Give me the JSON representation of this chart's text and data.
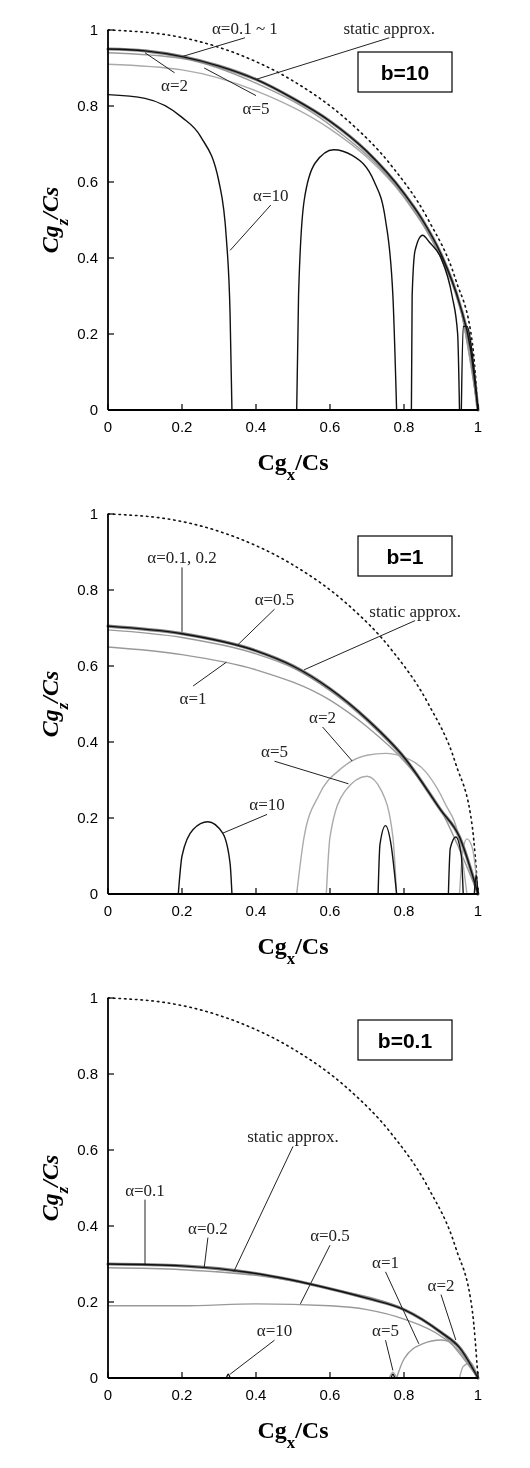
{
  "chart_data": [
    {
      "type": "line",
      "title": "b=10",
      "xlabel": "Cg$_{x}$/Cs",
      "ylabel": "Cg$_{z}$/Cs",
      "xlim": [
        0,
        1
      ],
      "ylim": [
        0,
        1
      ],
      "xticks": [
        0,
        0.2,
        0.4,
        0.6,
        0.8,
        1
      ],
      "yticks": [
        0,
        0.2,
        0.4,
        0.6,
        0.8,
        1
      ],
      "series": [
        {
          "color": "#111111",
          "line_style": "dotted",
          "x": [
            0,
            0.174,
            0.342,
            0.5,
            0.643,
            0.766,
            0.866,
            0.94,
            0.985,
            1
          ],
          "values": [
            1,
            0.985,
            0.94,
            0.866,
            0.766,
            0.643,
            0.5,
            0.342,
            0.174,
            0
          ]
        },
        {
          "color": "#aaaaaa",
          "x": [
            0,
            0.2,
            0.4,
            0.6,
            0.7,
            0.8,
            0.9,
            0.95,
            1
          ],
          "values": [
            0.91,
            0.895,
            0.84,
            0.74,
            0.665,
            0.56,
            0.4,
            0.28,
            0
          ]
        },
        {
          "color": "#999999",
          "x": [
            0,
            0.2,
            0.4,
            0.6,
            0.8,
            0.9,
            0.95,
            1
          ],
          "values": [
            0.94,
            0.925,
            0.86,
            0.75,
            0.56,
            0.4,
            0.28,
            0
          ]
        },
        {
          "color": "#808080",
          "x": [
            0,
            0.1,
            0.2,
            0.3,
            0.4,
            0.5,
            0.6,
            0.7,
            0.8,
            0.85,
            0.9,
            0.95,
            0.98,
            1
          ],
          "values": [
            0.95,
            0.945,
            0.93,
            0.905,
            0.87,
            0.82,
            0.76,
            0.68,
            0.57,
            0.5,
            0.41,
            0.28,
            0.16,
            0
          ]
        },
        {
          "color": "#111111",
          "x": [
            0,
            0.1,
            0.2,
            0.3,
            0.4,
            0.5,
            0.6,
            0.7,
            0.8,
            0.85,
            0.9,
            0.95,
            0.98,
            1
          ],
          "values": [
            0.95,
            0.945,
            0.93,
            0.905,
            0.87,
            0.82,
            0.76,
            0.68,
            0.57,
            0.5,
            0.41,
            0.28,
            0.16,
            0
          ]
        },
        {
          "color": "#111111",
          "x": [
            0,
            0.1,
            0.2,
            0.25,
            0.3,
            0.32,
            0.33,
            0.335,
            0.4,
            0.51,
            0.515,
            0.53,
            0.56,
            0.61,
            0.66,
            0.72,
            0.75,
            0.77,
            0.78,
            0.8,
            0.82,
            0.822,
            0.83,
            0.85,
            0.87,
            0.9,
            0.93,
            0.945,
            0.95,
            0.953,
            0.955,
            0.96,
            0.97,
            0.99,
            1
          ],
          "values": [
            0.83,
            0.82,
            0.77,
            0.72,
            0.6,
            0.45,
            0.25,
            0,
            null,
            0,
            0.3,
            0.55,
            0.65,
            0.685,
            0.67,
            0.6,
            0.5,
            0.3,
            0,
            null,
            0,
            0.3,
            0.42,
            0.46,
            0.44,
            0.4,
            0.3,
            0.2,
            0,
            null,
            0,
            0.22,
            0.22,
            0.1,
            0
          ]
        }
      ],
      "annotations": [
        {
          "text": "α=0.1 ~ 1",
          "x": 0.2,
          "y": 0.93
        },
        {
          "text": "static approx.",
          "x": 0.4,
          "y": 0.87
        },
        {
          "text": "α=2",
          "x": 0.1,
          "y": 0.94
        },
        {
          "text": "α=5",
          "x": 0.26,
          "y": 0.9
        },
        {
          "text": "α=10",
          "x": 0.33,
          "y": 0.42
        }
      ]
    },
    {
      "type": "line",
      "title": "b=1",
      "xlabel": "Cg$_{x}$/Cs",
      "ylabel": "Cg$_{z}$/Cs",
      "xlim": [
        0,
        1
      ],
      "ylim": [
        0,
        1
      ],
      "xticks": [
        0,
        0.2,
        0.4,
        0.6,
        0.8,
        1
      ],
      "yticks": [
        0,
        0.2,
        0.4,
        0.6,
        0.8,
        1
      ],
      "series": [
        {
          "color": "#111111",
          "line_style": "dotted",
          "x": [
            0,
            0.174,
            0.342,
            0.5,
            0.643,
            0.766,
            0.866,
            0.94,
            0.985,
            1
          ],
          "values": [
            1,
            0.985,
            0.94,
            0.866,
            0.766,
            0.643,
            0.5,
            0.342,
            0.174,
            0
          ]
        },
        {
          "color": "#999999",
          "x": [
            0,
            0.2,
            0.4,
            0.6,
            0.7,
            0.8,
            0.9,
            1
          ],
          "values": [
            0.65,
            0.63,
            0.59,
            0.51,
            0.44,
            0.35,
            0.22,
            0
          ]
        },
        {
          "color": "#aaaaaa",
          "x": [
            0.51,
            0.53,
            0.57,
            0.63,
            0.7,
            0.75,
            0.8,
            0.86,
            0.91,
            0.95,
            0.97
          ],
          "values": [
            0,
            0.15,
            0.26,
            0.33,
            0.365,
            0.37,
            0.36,
            0.32,
            0.24,
            0.14,
            0
          ]
        },
        {
          "color": "#aaaaaa",
          "x": [
            0.59,
            0.6,
            0.64,
            0.7,
            0.74,
            0.77,
            0.78,
            0.9,
            0.95,
            0.96,
            0.97,
            0.985,
            1
          ],
          "values": [
            0,
            0.15,
            0.27,
            0.31,
            0.27,
            0.15,
            0,
            null,
            0,
            0.12,
            0.145,
            0.12,
            0
          ]
        },
        {
          "color": "#999999",
          "x": [
            0,
            0.2,
            0.4,
            0.5,
            0.6,
            0.7,
            0.8,
            0.9,
            0.95,
            1
          ],
          "values": [
            0.695,
            0.675,
            0.632,
            0.595,
            0.535,
            0.455,
            0.355,
            0.22,
            0.15,
            0
          ]
        },
        {
          "color": "#808080",
          "x": [
            0,
            0.2,
            0.4,
            0.5,
            0.6,
            0.7,
            0.8,
            0.9,
            0.95,
            1
          ],
          "values": [
            0.705,
            0.685,
            0.64,
            0.6,
            0.54,
            0.46,
            0.36,
            0.22,
            0.15,
            0
          ]
        },
        {
          "color": "#111111",
          "x": [
            0,
            0.2,
            0.4,
            0.5,
            0.6,
            0.7,
            0.8,
            0.9,
            0.95,
            1
          ],
          "values": [
            0.705,
            0.685,
            0.64,
            0.6,
            0.54,
            0.46,
            0.36,
            0.22,
            0.15,
            0
          ]
        },
        {
          "color": "#111111",
          "x": [
            0.19,
            0.2,
            0.23,
            0.27,
            0.31,
            0.33,
            0.335,
            0.5,
            0.73,
            0.735,
            0.75,
            0.765,
            0.78,
            0.85,
            0.92,
            0.925,
            0.94,
            0.955,
            0.96,
            0.98,
            0.99,
            0.995,
            1
          ],
          "values": [
            0,
            0.1,
            0.17,
            0.19,
            0.16,
            0.08,
            0,
            null,
            0,
            0.13,
            0.18,
            0.13,
            0,
            null,
            0,
            0.12,
            0.15,
            0.1,
            0,
            null,
            0,
            0.05,
            0
          ]
        }
      ],
      "annotations": [
        {
          "text": "α=0.1, 0.2",
          "x": 0.2,
          "y": 0.69
        },
        {
          "text": "α=0.5",
          "x": 0.35,
          "y": 0.655
        },
        {
          "text": "static approx.",
          "x": 0.53,
          "y": 0.59
        },
        {
          "text": "α=1",
          "x": 0.32,
          "y": 0.61
        },
        {
          "text": "α=2",
          "x": 0.66,
          "y": 0.35
        },
        {
          "text": "α=5",
          "x": 0.65,
          "y": 0.29
        },
        {
          "text": "α=10",
          "x": 0.31,
          "y": 0.16
        }
      ]
    },
    {
      "type": "line",
      "title": "b=0.1",
      "xlabel": "Cg$_{x}$/Cs",
      "ylabel": "Cg$_{z}$/Cs",
      "xlim": [
        0,
        1
      ],
      "ylim": [
        0,
        1
      ],
      "xticks": [
        0,
        0.2,
        0.4,
        0.6,
        0.8,
        1
      ],
      "yticks": [
        0,
        0.2,
        0.4,
        0.6,
        0.8,
        1
      ],
      "series": [
        {
          "color": "#111111",
          "line_style": "dotted",
          "x": [
            0,
            0.174,
            0.342,
            0.5,
            0.643,
            0.766,
            0.866,
            0.94,
            0.985,
            1
          ],
          "values": [
            1,
            0.985,
            0.94,
            0.866,
            0.766,
            0.643,
            0.5,
            0.342,
            0.174,
            0
          ]
        },
        {
          "color": "#999999",
          "x": [
            0,
            0.2,
            0.4,
            0.6,
            0.7,
            0.8,
            0.9,
            0.95,
            1
          ],
          "values": [
            0.19,
            0.19,
            0.195,
            0.19,
            0.18,
            0.155,
            0.11,
            0.07,
            0
          ]
        },
        {
          "color": "#999999",
          "x": [
            0.78,
            0.8,
            0.85,
            0.9,
            0.95,
            0.98,
            1
          ],
          "values": [
            0,
            0.05,
            0.09,
            0.1,
            0.08,
            0.04,
            0
          ]
        },
        {
          "color": "#aaaaaa",
          "x": [
            0.95,
            0.96,
            0.98,
            1
          ],
          "values": [
            0,
            0.03,
            0.04,
            0
          ]
        },
        {
          "color": "#aaaaaa",
          "x": [
            0.76,
            0.77,
            0.78
          ],
          "values": [
            0,
            0.015,
            0
          ]
        },
        {
          "color": "#999999",
          "x": [
            0,
            0.2,
            0.4,
            0.6,
            0.8,
            0.9,
            1
          ],
          "values": [
            0.29,
            0.285,
            0.27,
            0.235,
            0.18,
            0.12,
            0
          ]
        },
        {
          "color": "#808080",
          "x": [
            0,
            0.2,
            0.4,
            0.6,
            0.7,
            0.8,
            0.9,
            0.95,
            1
          ],
          "values": [
            0.3,
            0.295,
            0.275,
            0.235,
            0.21,
            0.18,
            0.12,
            0.08,
            0
          ]
        },
        {
          "color": "#111111",
          "x": [
            0,
            0.2,
            0.4,
            0.6,
            0.7,
            0.8,
            0.9,
            0.95,
            1
          ],
          "values": [
            0.3,
            0.295,
            0.275,
            0.235,
            0.21,
            0.18,
            0.12,
            0.08,
            0
          ]
        },
        {
          "color": "#111111",
          "x": [
            0.32,
            0.325,
            0.33,
            0.5,
            0.765,
            0.77,
            0.775
          ],
          "values": [
            0,
            0.01,
            0,
            null,
            0,
            0.01,
            0
          ]
        }
      ],
      "annotations": [
        {
          "text": "static approx.",
          "x": 0.34,
          "y": 0.28
        },
        {
          "text": "α=0.1",
          "x": 0.1,
          "y": 0.3
        },
        {
          "text": "α=0.2",
          "x": 0.26,
          "y": 0.29
        },
        {
          "text": "α=0.5",
          "x": 0.52,
          "y": 0.195
        },
        {
          "text": "α=1",
          "x": 0.84,
          "y": 0.09
        },
        {
          "text": "α=2",
          "x": 0.94,
          "y": 0.1
        },
        {
          "text": "α=5",
          "x": 0.77,
          "y": 0.02
        },
        {
          "text": "α=10",
          "x": 0.33,
          "y": 0.01
        }
      ]
    }
  ]
}
